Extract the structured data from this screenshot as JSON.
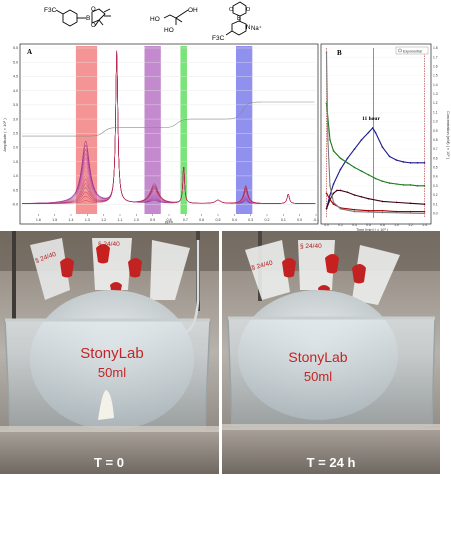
{
  "structures": {
    "left_group": "F3C",
    "left_atoms": [
      "B",
      "O",
      "O"
    ],
    "middle_ho": [
      "HO",
      "HO",
      "OH"
    ],
    "right_atoms": [
      "O",
      "B",
      "O",
      "N"
    ],
    "right_charge": "Na⁺",
    "right_group": "F3C"
  },
  "panel_a": {
    "label": "A",
    "y_axis_label": "Amplitude ( × 10⁶ )",
    "x_axis_label": "ppm",
    "band_colors": [
      "#f05a5a",
      "#a54cb3",
      "#33d433",
      "#5555e6"
    ]
  },
  "panel_b": {
    "label": "B",
    "right_axis_label": "Concentration (mM) ( × 10² )",
    "x_axis_label": "Time [min] ( × 10³ )",
    "legend_label": "Exponential",
    "annotation": "11 hour"
  },
  "photos": {
    "left_caption": "T = 0",
    "right_caption": "T = 24 h",
    "flask_brand": "StonyLab",
    "flask_volume": "50ml",
    "joint_label": "§ 24/40"
  },
  "chart_data": [
    {
      "type": "line",
      "title": "",
      "xlabel": "ppm",
      "ylabel": "Amplitude ( × 10⁶ )",
      "xlim": [
        1.7,
        -0.1
      ],
      "ylim": [
        -0.2,
        5.5
      ],
      "x_ticks": [
        "1.6",
        "1.5",
        "1.4",
        "1.3",
        "1.2",
        "1.1",
        "1.0",
        "0.9",
        "0.8",
        "0.7",
        "0.6",
        "0.5",
        "0.4",
        "0.3",
        "0.2",
        "0.1",
        "0.0",
        "-0.1"
      ],
      "y_ticks": [
        "-0.0",
        "0.5",
        "1.0",
        "1.5",
        "2.0",
        "2.5",
        "3.0",
        "3.5",
        "4.0",
        "4.5",
        "5.0",
        "5.5"
      ],
      "shaded_bands_ppm": [
        [
          1.37,
          1.24
        ],
        [
          0.95,
          0.85
        ],
        [
          0.73,
          0.69
        ],
        [
          0.39,
          0.29
        ]
      ],
      "peaks_ppm": [
        1.31,
        1.12,
        0.89,
        0.71,
        0.5,
        0.33,
        0.07
      ]
    },
    {
      "type": "line",
      "title": "",
      "xlabel": "Time [min] ( × 10³ )",
      "ylabel": "Concentration (mM) ( × 10² )",
      "xlim": [
        -0.05,
        1.45
      ],
      "ylim": [
        -0.05,
        1.8
      ],
      "x_ticks": [
        "0.0",
        "0.2",
        "0.4",
        "0.6",
        "0.8",
        "1.0",
        "1.2",
        "1.4"
      ],
      "y_ticks": [
        "0.0",
        "0.1",
        "0.2",
        "0.3",
        "0.4",
        "0.5",
        "0.6",
        "0.7",
        "0.8",
        "0.9",
        "1.0",
        "1.1",
        "1.2",
        "1.3",
        "1.4",
        "1.5",
        "1.6",
        "1.7",
        "1.8"
      ],
      "series": [
        {
          "color": "#1a1a8c",
          "x": [
            0,
            0.05,
            0.1,
            0.2,
            0.3,
            0.4,
            0.5,
            0.6,
            0.66,
            0.7,
            0.8,
            0.9,
            1.0,
            1.1,
            1.2,
            1.3,
            1.4
          ],
          "y": [
            0.05,
            0.2,
            0.32,
            0.48,
            0.6,
            0.7,
            0.8,
            0.88,
            0.93,
            0.88,
            0.72,
            0.62,
            0.58,
            0.56,
            0.55,
            0.55,
            0.55
          ]
        },
        {
          "color": "#1a7a1a",
          "x": [
            0,
            0.05,
            0.1,
            0.2,
            0.3,
            0.4,
            0.5,
            0.6,
            0.7,
            0.8,
            0.9,
            1.0,
            1.1,
            1.2,
            1.3,
            1.4
          ],
          "y": [
            1.2,
            0.8,
            0.68,
            0.6,
            0.55,
            0.5,
            0.46,
            0.42,
            0.38,
            0.35,
            0.33,
            0.32,
            0.31,
            0.31,
            0.3,
            0.3
          ]
        },
        {
          "color": "#400010",
          "x": [
            0,
            0.05,
            0.1,
            0.15,
            0.2,
            0.3,
            0.4,
            0.5,
            0.6,
            0.8,
            1.0,
            1.2,
            1.4
          ],
          "y": [
            0.05,
            0.15,
            0.22,
            0.25,
            0.25,
            0.23,
            0.2,
            0.18,
            0.16,
            0.13,
            0.12,
            0.11,
            0.1
          ]
        },
        {
          "color": "#a00000",
          "x": [
            0,
            0.05,
            0.1,
            0.2,
            0.4,
            0.6,
            0.8,
            1.0,
            1.2,
            1.4
          ],
          "y": [
            0.22,
            0.15,
            0.1,
            0.06,
            0.04,
            0.03,
            0.03,
            0.02,
            0.02,
            0.02
          ]
        },
        {
          "color": "#7a7a7a",
          "x": [
            0,
            0.02,
            0.05,
            0.1,
            0.2,
            0.4,
            0.8,
            1.4
          ],
          "y": [
            1.75,
            0.8,
            0.3,
            0.12,
            0.05,
            0.02,
            0.01,
            0.0
          ]
        }
      ],
      "vertical_lines": [
        0.0,
        0.67,
        1.4
      ]
    }
  ]
}
